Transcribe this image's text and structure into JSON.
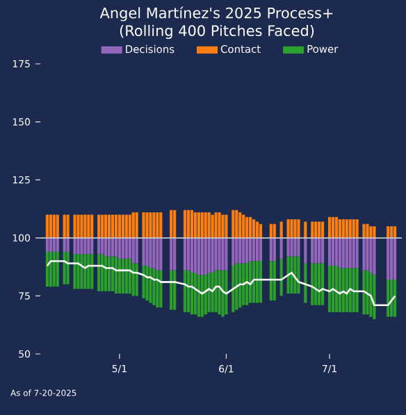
{
  "chart_data": {
    "type": "bar",
    "title": "Angel Martínez's 2025 Process+",
    "subtitle": "(Rolling 400 Pitches Faced)",
    "annotations": [
      "As of 7-20-2025"
    ],
    "x": [
      "2025-04-10",
      "2025-04-11",
      "2025-04-12",
      "2025-04-13",
      "2025-04-15",
      "2025-04-16",
      "2025-04-18",
      "2025-04-19",
      "2025-04-20",
      "2025-04-21",
      "2025-04-22",
      "2025-04-23",
      "2025-04-25",
      "2025-04-26",
      "2025-04-27",
      "2025-04-28",
      "2025-04-29",
      "2025-04-30",
      "2025-05-01",
      "2025-05-02",
      "2025-05-03",
      "2025-05-04",
      "2025-05-05",
      "2025-05-06",
      "2025-05-08",
      "2025-05-09",
      "2025-05-10",
      "2025-05-11",
      "2025-05-12",
      "2025-05-13",
      "2025-05-16",
      "2025-05-17",
      "2025-05-20",
      "2025-05-21",
      "2025-05-22",
      "2025-05-23",
      "2025-05-24",
      "2025-05-25",
      "2025-05-26",
      "2025-05-27",
      "2025-05-28",
      "2025-05-29",
      "2025-05-30",
      "2025-05-31",
      "2025-06-01",
      "2025-06-03",
      "2025-06-04",
      "2025-06-05",
      "2025-06-06",
      "2025-06-07",
      "2025-06-08",
      "2025-06-09",
      "2025-06-10",
      "2025-06-11",
      "2025-06-14",
      "2025-06-15",
      "2025-06-17",
      "2025-06-19",
      "2025-06-20",
      "2025-06-21",
      "2025-06-22",
      "2025-06-24",
      "2025-06-26",
      "2025-06-27",
      "2025-06-28",
      "2025-06-29",
      "2025-07-01",
      "2025-07-02",
      "2025-07-03",
      "2025-07-04",
      "2025-07-05",
      "2025-07-06",
      "2025-07-07",
      "2025-07-08",
      "2025-07-09",
      "2025-07-11",
      "2025-07-12",
      "2025-07-13",
      "2025-07-14",
      "2025-07-18",
      "2025-07-19",
      "2025-07-20"
    ],
    "series": [
      {
        "name": "Decisions",
        "color": "#9467bd",
        "base": [
          100,
          100,
          100,
          100,
          100,
          100,
          100,
          100,
          100,
          100,
          100,
          100,
          100,
          100,
          100,
          100,
          100,
          100,
          100,
          100,
          100,
          100,
          100,
          100,
          100,
          100,
          100,
          100,
          100,
          100,
          100,
          100,
          100,
          100,
          100,
          100,
          100,
          100,
          100,
          100,
          100,
          100,
          100,
          100,
          100,
          100,
          100,
          100,
          100,
          100,
          100,
          100,
          100,
          100,
          100,
          100,
          100,
          100,
          100,
          100,
          100,
          100,
          100,
          100,
          100,
          100,
          100,
          100,
          100,
          100,
          100,
          100,
          100,
          100,
          100,
          100,
          100,
          100,
          100,
          100,
          100,
          100
        ],
        "values": [
          -6,
          -6,
          -6,
          -6,
          -6,
          -6,
          -7,
          -7,
          -7,
          -7,
          -7,
          -7,
          -7,
          -7,
          -8,
          -8,
          -8,
          -8,
          -9,
          -9,
          -9,
          -9,
          -11,
          -11,
          -12,
          -12,
          -13,
          -13,
          -14,
          -14,
          -14,
          -14,
          -14,
          -14,
          -15,
          -15,
          -16,
          -16,
          -16,
          -15,
          -15,
          -14,
          -14,
          -14,
          -14,
          -12,
          -11,
          -11,
          -11,
          -11,
          -10,
          -10,
          -10,
          -10,
          -10,
          -10,
          -9,
          -8,
          -8,
          -8,
          -8,
          -11,
          -11,
          -11,
          -11,
          -11,
          -12,
          -12,
          -12,
          -13,
          -13,
          -13,
          -13,
          -13,
          -13,
          -14,
          -14,
          -15,
          -16,
          -18,
          -18,
          -18
        ]
      },
      {
        "name": "Contact",
        "color": "#ff7f0e",
        "base": [
          100,
          100,
          100,
          100,
          100,
          100,
          100,
          100,
          100,
          100,
          100,
          100,
          100,
          100,
          100,
          100,
          100,
          100,
          100,
          100,
          100,
          100,
          100,
          100,
          100,
          100,
          100,
          100,
          100,
          100,
          100,
          100,
          100,
          100,
          100,
          100,
          100,
          100,
          100,
          100,
          100,
          100,
          100,
          100,
          100,
          100,
          100,
          100,
          100,
          100,
          100,
          100,
          100,
          100,
          100,
          100,
          100,
          100,
          100,
          100,
          100,
          100,
          100,
          100,
          100,
          100,
          100,
          100,
          100,
          100,
          100,
          100,
          100,
          100,
          100,
          100,
          100,
          100,
          100,
          100,
          100,
          100
        ],
        "values": [
          10,
          10,
          10,
          10,
          10,
          10,
          10,
          10,
          10,
          10,
          10,
          10,
          10,
          10,
          10,
          10,
          10,
          10,
          10,
          10,
          10,
          10,
          11,
          11,
          11,
          11,
          11,
          11,
          11,
          11,
          12,
          12,
          12,
          12,
          12,
          11,
          11,
          11,
          11,
          11,
          10,
          11,
          11,
          10,
          10,
          12,
          12,
          11,
          10,
          9,
          9,
          8,
          7,
          6,
          6,
          6,
          7,
          8,
          8,
          8,
          8,
          7,
          7,
          7,
          7,
          7,
          9,
          9,
          9,
          8,
          8,
          8,
          8,
          8,
          8,
          6,
          6,
          5,
          5,
          5,
          5,
          5
        ]
      },
      {
        "name": "Power",
        "color": "#2ca02c",
        "base": [
          94,
          94,
          94,
          94,
          94,
          94,
          93,
          93,
          93,
          93,
          93,
          93,
          93,
          93,
          92,
          92,
          92,
          92,
          91,
          91,
          91,
          91,
          89,
          89,
          88,
          88,
          87,
          87,
          86,
          86,
          86,
          86,
          86,
          86,
          85,
          85,
          84,
          84,
          84,
          85,
          85,
          86,
          86,
          86,
          86,
          88,
          89,
          89,
          89,
          89,
          90,
          90,
          90,
          90,
          90,
          90,
          91,
          92,
          92,
          92,
          92,
          89,
          89,
          89,
          89,
          89,
          88,
          88,
          88,
          87,
          87,
          87,
          87,
          87,
          87,
          86,
          86,
          85,
          84,
          82,
          82,
          82
        ],
        "values": [
          -15,
          -15,
          -15,
          -15,
          -14,
          -14,
          -15,
          -15,
          -15,
          -15,
          -15,
          -15,
          -16,
          -16,
          -15,
          -15,
          -15,
          -16,
          -15,
          -15,
          -15,
          -15,
          -14,
          -14,
          -14,
          -15,
          -15,
          -16,
          -16,
          -16,
          -17,
          -17,
          -18,
          -18,
          -18,
          -18,
          -18,
          -18,
          -17,
          -17,
          -17,
          -18,
          -19,
          -20,
          -19,
          -20,
          -20,
          -19,
          -18,
          -18,
          -18,
          -18,
          -18,
          -18,
          -17,
          -17,
          -16,
          -16,
          -16,
          -16,
          -16,
          -17,
          -18,
          -18,
          -18,
          -18,
          -20,
          -20,
          -20,
          -19,
          -19,
          -19,
          -19,
          -19,
          -19,
          -19,
          -19,
          -19,
          -19,
          -16,
          -16,
          -16
        ]
      },
      {
        "type": "line",
        "color": "#ffffff",
        "values": [
          88,
          90,
          90,
          90,
          90,
          89,
          89,
          89,
          88,
          87,
          88,
          88,
          88,
          88,
          87,
          87,
          87,
          86,
          86,
          86,
          86,
          86,
          85,
          85,
          84,
          83,
          83,
          82,
          82,
          81,
          81,
          81,
          80,
          79,
          79,
          78,
          77,
          76,
          77,
          78,
          77,
          79,
          79,
          77,
          76,
          78,
          79,
          80,
          80,
          81,
          80,
          82,
          82,
          82,
          82,
          82,
          82,
          84,
          85,
          83,
          81,
          80,
          79,
          78,
          77,
          78,
          77,
          78,
          77,
          76,
          77,
          76,
          78,
          77,
          77,
          77,
          76,
          75,
          71,
          71,
          73,
          75
        ]
      }
    ],
    "xlim": [
      "2025-04-08",
      "2025-07-22"
    ],
    "xticks": [
      {
        "value": "2025-05-01",
        "label": "5/1"
      },
      {
        "value": "2025-06-01",
        "label": "6/1"
      },
      {
        "value": "2025-07-01",
        "label": "7/1"
      }
    ],
    "ylim": [
      50,
      175
    ],
    "yticks": [
      50,
      75,
      100,
      125,
      150,
      175
    ],
    "ref_lines": [
      {
        "axis": "y",
        "value": 100,
        "color": "#c8c8c8"
      }
    ],
    "legend": "top"
  }
}
